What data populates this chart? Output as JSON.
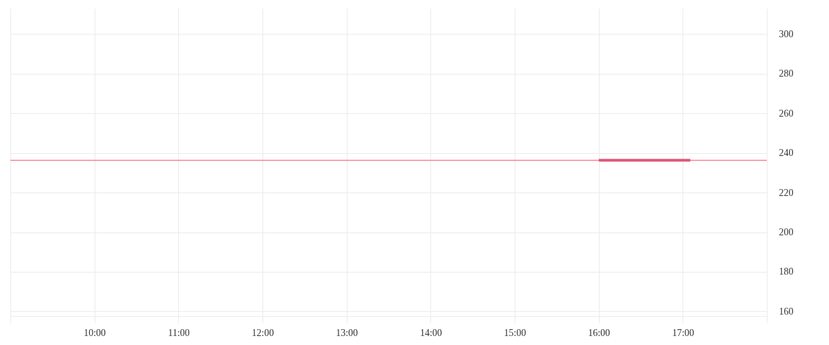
{
  "chart_data": {
    "type": "line",
    "x": [
      16,
      17.09
    ],
    "series": [
      {
        "color": "#dc5a7a",
        "values": [
          236.3,
          236.3
        ]
      }
    ],
    "ref_lines": [
      {
        "axis": "y",
        "value": 236.3,
        "color": "#f5515f"
      }
    ],
    "xlim": [
      9,
      18
    ],
    "xticks": [
      {
        "value": 9,
        "label": null
      },
      {
        "value": 10,
        "label": "10:00"
      },
      {
        "value": 11,
        "label": "11:00"
      },
      {
        "value": 12,
        "label": "12:00"
      },
      {
        "value": 13,
        "label": "13:00"
      },
      {
        "value": 14,
        "label": "14:00"
      },
      {
        "value": 15,
        "label": "15:00"
      },
      {
        "value": 16,
        "label": "16:00"
      },
      {
        "value": 17,
        "label": "17:00"
      },
      {
        "value": 18,
        "label": null
      }
    ],
    "ylim": [
      157.7,
      313
    ],
    "yticks": [
      160,
      180,
      200,
      220,
      240,
      260,
      280,
      300
    ],
    "grid": true
  }
}
